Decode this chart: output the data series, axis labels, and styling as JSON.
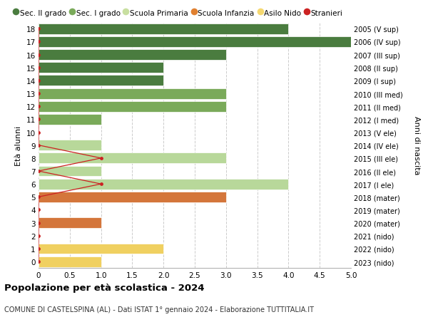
{
  "ages": [
    18,
    17,
    16,
    15,
    14,
    13,
    12,
    11,
    10,
    9,
    8,
    7,
    6,
    5,
    4,
    3,
    2,
    1,
    0
  ],
  "right_labels": [
    "2005 (V sup)",
    "2006 (IV sup)",
    "2007 (III sup)",
    "2008 (II sup)",
    "2009 (I sup)",
    "2010 (III med)",
    "2011 (II med)",
    "2012 (I med)",
    "2013 (V ele)",
    "2014 (IV ele)",
    "2015 (III ele)",
    "2016 (II ele)",
    "2017 (I ele)",
    "2018 (mater)",
    "2019 (mater)",
    "2020 (mater)",
    "2021 (nido)",
    "2022 (nido)",
    "2023 (nido)"
  ],
  "bar_values": [
    4,
    5,
    3,
    2,
    2,
    3,
    3,
    1,
    0,
    1,
    3,
    1,
    4,
    3,
    0,
    1,
    0,
    2,
    1
  ],
  "bar_colors": [
    "#4a7c3f",
    "#4a7c3f",
    "#4a7c3f",
    "#4a7c3f",
    "#4a7c3f",
    "#7aaa5a",
    "#7aaa5a",
    "#7aaa5a",
    "#b8d89a",
    "#b8d89a",
    "#b8d89a",
    "#b8d89a",
    "#b8d89a",
    "#d4763b",
    "#d4763b",
    "#d4763b",
    "#f0d060",
    "#f0d060",
    "#f0d060"
  ],
  "stranieri_ages": [
    18,
    17,
    16,
    15,
    14,
    13,
    12,
    11,
    10,
    9,
    8,
    7,
    6,
    5,
    4,
    3,
    2,
    1,
    0
  ],
  "stranieri_values": [
    0,
    0,
    0,
    0,
    0,
    0,
    0,
    0,
    0,
    0,
    1,
    0,
    1,
    0,
    0,
    0,
    0,
    0,
    0
  ],
  "legend_labels": [
    "Sec. II grado",
    "Sec. I grado",
    "Scuola Primaria",
    "Scuola Infanzia",
    "Asilo Nido",
    "Stranieri"
  ],
  "legend_colors": [
    "#4a7c3f",
    "#7aaa5a",
    "#c8dfa0",
    "#e08030",
    "#f5d870",
    "#cc2222"
  ],
  "title": "Popolazione per età scolastica - 2024",
  "subtitle": "COMUNE DI CASTELSPINA (AL) - Dati ISTAT 1° gennaio 2024 - Elaborazione TUTTITALIA.IT",
  "ylabel": "Età alunni",
  "right_ylabel": "Anni di nascita",
  "xlim": [
    0,
    5.0
  ],
  "grid_color": "#cccccc",
  "stranieri_color": "#cc2222",
  "bar_edge_color": "white"
}
